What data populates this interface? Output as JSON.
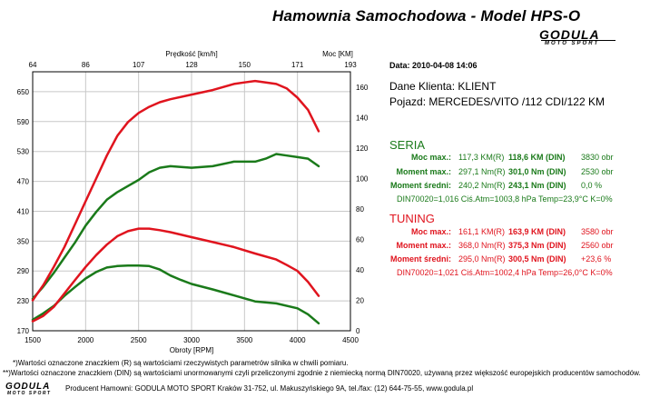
{
  "header": {
    "title": "Hamownia Samochodowa   -   Model HPS-O",
    "logo_text": "GODULA",
    "logo_sub": "MOTO SPORT"
  },
  "info": {
    "date": "Data: 2010-04-08  14:06",
    "client": "Dane Klienta: KLIENT",
    "vehicle": "Pojazd: MERCEDES/VITO /112 CDI/122 KM"
  },
  "seria": {
    "title": "SERIA",
    "rows": [
      {
        "label": "Moc max.:",
        "r": "117,3 KM(R)",
        "din": "118,6 KM (DIN)",
        "extra": "3830 obr"
      },
      {
        "label": "Moment max.:",
        "r": "297,1 Nm(R)",
        "din": "301,0 Nm (DIN)",
        "extra": "2530 obr"
      },
      {
        "label": "Moment średni:",
        "r": "240,2 Nm(R)",
        "din": "243,1 Nm (DIN)",
        "extra": "0,0 %"
      }
    ],
    "din_line": "DIN70020=1,016    Ciś.Atm=1003,8 hPa   Temp=23,9°C   K=0%"
  },
  "tuning": {
    "title": "TUNING",
    "rows": [
      {
        "label": "Moc max.:",
        "r": "161,1 KM(R)",
        "din": "163,9 KM (DIN)",
        "extra": "3580 obr"
      },
      {
        "label": "Moment max.:",
        "r": "368,0 Nm(R)",
        "din": "375,3 Nm (DIN)",
        "extra": "2560 obr"
      },
      {
        "label": "Moment średni:",
        "r": "295,0 Nm(R)",
        "din": "300,5 Nm (DIN)",
        "extra": "+23,6 %"
      }
    ],
    "din_line": "DIN70020=1,021    Ciś.Atm=1002,4 hPa   Temp=26,0°C   K=0%"
  },
  "footer": {
    "note1": "*)Wartości oznaczone znaczkiem (R) są wartościami rzeczywistych parametrów silnika w chwili pomiaru.",
    "note2": "**)Wartości oznaczone znaczkiem (DIN) są wartościami unormowanymi czyli przeliczonymi zgodnie z niemiecką normą DIN70020, używaną przez większość europejskich producentów samochodów.",
    "producer": "Producent Hamowni: GODULA MOTO SPORT Kraków 31-752, ul. Makuszyńskiego 9A, tel./fax: (12) 644-75-55, www.godula.pl"
  },
  "chart_data": {
    "type": "line",
    "xlabel": "Obroty [RPM]",
    "top_xlabel": "Prędkość [km/h]",
    "right_ylabel": "Moc [KM]",
    "xlim": [
      1500,
      4500
    ],
    "xticks": [
      1500,
      2000,
      2500,
      3000,
      3500,
      4000,
      4500
    ],
    "top_ticks": [
      "64",
      "86",
      "107",
      "128",
      "150",
      "171",
      "193"
    ],
    "y_left_lim": [
      170,
      690
    ],
    "y_left_ticks": [
      170,
      230,
      290,
      350,
      410,
      470,
      530,
      590,
      650
    ],
    "y_right_lim": [
      0,
      170
    ],
    "y_right_ticks": [
      0,
      20,
      40,
      60,
      80,
      100,
      120,
      140,
      160
    ],
    "grid": true,
    "series": [
      {
        "axis": "right",
        "color": "#1a7a1a",
        "x": [
          1500,
          1600,
          1700,
          1800,
          1900,
          2000,
          2100,
          2200,
          2300,
          2400,
          2500,
          2600,
          2700,
          2800,
          3000,
          3200,
          3400,
          3600,
          3700,
          3800,
          3900,
          4000,
          4100,
          4200
        ],
        "y": [
          21,
          29,
          38,
          48,
          58,
          69,
          78,
          86,
          91,
          95,
          99,
          104,
          107,
          108,
          107,
          108,
          111,
          111,
          113,
          116,
          115,
          114,
          113,
          108
        ]
      },
      {
        "axis": "left",
        "color": "#1a7a1a",
        "x": [
          1500,
          1600,
          1700,
          1800,
          1900,
          2000,
          2100,
          2200,
          2300,
          2400,
          2500,
          2600,
          2700,
          2800,
          2900,
          3000,
          3200,
          3400,
          3600,
          3800,
          4000,
          4100,
          4200
        ],
        "y": [
          192,
          205,
          220,
          240,
          258,
          275,
          288,
          297,
          300,
          301,
          301,
          300,
          293,
          281,
          272,
          264,
          253,
          241,
          229,
          225,
          215,
          203,
          185
        ]
      },
      {
        "axis": "right",
        "color": "#e0141e",
        "x": [
          1500,
          1600,
          1700,
          1800,
          1900,
          2000,
          2100,
          2200,
          2300,
          2400,
          2500,
          2600,
          2700,
          2800,
          3000,
          3200,
          3400,
          3500,
          3600,
          3700,
          3800,
          3900,
          4000,
          4100,
          4200
        ],
        "y": [
          20,
          30,
          42,
          55,
          70,
          85,
          100,
          115,
          128,
          137,
          143,
          147,
          150,
          152,
          155,
          158,
          162,
          163,
          164,
          163,
          162,
          159,
          153,
          145,
          131
        ]
      },
      {
        "axis": "left",
        "color": "#e0141e",
        "x": [
          1500,
          1600,
          1700,
          1800,
          1900,
          2000,
          2100,
          2200,
          2300,
          2400,
          2500,
          2600,
          2700,
          2800,
          3000,
          3200,
          3400,
          3600,
          3800,
          3900,
          4000,
          4100,
          4200
        ],
        "y": [
          189,
          200,
          218,
          245,
          272,
          298,
          322,
          343,
          360,
          370,
          375,
          375,
          372,
          368,
          358,
          348,
          338,
          325,
          313,
          302,
          290,
          268,
          240
        ]
      }
    ]
  }
}
